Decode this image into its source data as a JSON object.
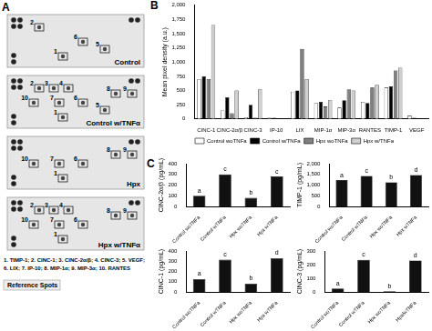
{
  "membrane_array": {
    "panel_label": "A",
    "membranes": [
      {
        "name": "Control",
        "boxes": [
          "2",
          "1",
          "6",
          "5"
        ]
      },
      {
        "name": "Control w/TNFα",
        "boxes": [
          "2",
          "3",
          "4",
          "10",
          "7",
          "6",
          "5",
          "1",
          "8",
          "9"
        ]
      },
      {
        "name": "Hpx",
        "boxes": [
          "10",
          "7",
          "6",
          "1",
          "8",
          "9"
        ]
      },
      {
        "name": "Hpx w/TNFα",
        "boxes": [
          "2",
          "3",
          "4",
          "10",
          "7",
          "6",
          "1",
          "8",
          "9"
        ]
      }
    ],
    "key": [
      "1. TIMP-1; 2. CINC-1; 3. CINC-2α/β; 4. CINC-3; 5. VEGF;",
      "6. LIX; 7. IP-10; 8. MIP-1α; 9. MIP-3α; 10. RANTES"
    ],
    "reference_label": "Reference Spots"
  },
  "chart_data": [
    {
      "panel_label": "B",
      "type": "bar",
      "y_label": "Mean pixel density (a.u.)",
      "categories": [
        "CINC-1",
        "CINC-2α/β",
        "CINC-3",
        "IP-10",
        "LIX",
        "MIP-1α",
        "MIP-3α",
        "RANTES",
        "TIMP-1",
        "VEGF"
      ],
      "series": [
        {
          "name": "Control woTNFa",
          "color": "#ffffff",
          "values": [
            700,
            150,
            30,
            20,
            480,
            280,
            200,
            300,
            550,
            60
          ]
        },
        {
          "name": "Control w/TNFa",
          "color": "#000000",
          "values": [
            750,
            380,
            250,
            20,
            500,
            300,
            330,
            280,
            570,
            20
          ]
        },
        {
          "name": "Hpx woTNFa",
          "color": "#808080",
          "values": [
            700,
            100,
            20,
            0,
            1230,
            220,
            520,
            550,
            850,
            0
          ]
        },
        {
          "name": "Hpx w/TNFa",
          "color": "#d0d0d0",
          "values": [
            1650,
            500,
            520,
            0,
            700,
            330,
            500,
            600,
            900,
            0
          ]
        }
      ],
      "ylim": [
        0,
        2000
      ],
      "yticks": [
        0,
        250,
        500,
        750,
        1000,
        1250,
        1500,
        1750,
        2000
      ],
      "grid": false,
      "legend": "bottom"
    },
    {
      "panel_label": "C",
      "type": "bar",
      "y_label": "CINC-2α/β (pg/mL)",
      "categories": [
        "Control woTNFa",
        "Control wTNFa",
        "Hpx woTNFa",
        "Hpx wTNFa"
      ],
      "values": [
        100,
        300,
        80,
        280
      ],
      "annotations": [
        "a",
        "c",
        "b",
        "c"
      ],
      "color": "#111111",
      "ylim": [
        0,
        400
      ],
      "yticks": [
        0,
        100,
        200,
        300,
        400
      ],
      "grid": false
    },
    {
      "type": "bar",
      "y_label": "TIMP-1 (pg/mL)",
      "categories": [
        "Control woTNFa",
        "Control wTNFa",
        "Hpx woTNFa",
        "Hpx wTNFa"
      ],
      "values": [
        1230,
        1430,
        1130,
        1470
      ],
      "annotations": [
        "a",
        "c",
        "b",
        "d"
      ],
      "color": "#111111",
      "ylim": [
        0,
        2000
      ],
      "yticks": [
        0,
        500,
        1000,
        1500,
        2000
      ],
      "grid": false
    },
    {
      "type": "bar",
      "y_label": "CINC-1 (pg/mL)",
      "categories": [
        "Control woTNFa",
        "Control wTNFa",
        "Hpx woTNFa",
        "Hpx wTNFa"
      ],
      "values": [
        125,
        315,
        80,
        330
      ],
      "annotations": [
        "a",
        "c",
        "b",
        "d"
      ],
      "color": "#111111",
      "ylim": [
        0,
        400
      ],
      "yticks": [
        0,
        100,
        200,
        300,
        400
      ],
      "grid": false
    },
    {
      "type": "bar",
      "y_label": "CINC-3 (pg/mL)",
      "categories": [
        "Control woTNFa",
        "Control wTNFa",
        "Hpx woTNFa",
        "Hpx/wTNFa"
      ],
      "values": [
        25,
        235,
        5,
        230
      ],
      "annotations": [
        "a",
        "c",
        "b",
        "d"
      ],
      "color": "#111111",
      "ylim": [
        0,
        300
      ],
      "yticks": [
        0,
        100,
        200,
        300
      ],
      "grid": false
    }
  ]
}
